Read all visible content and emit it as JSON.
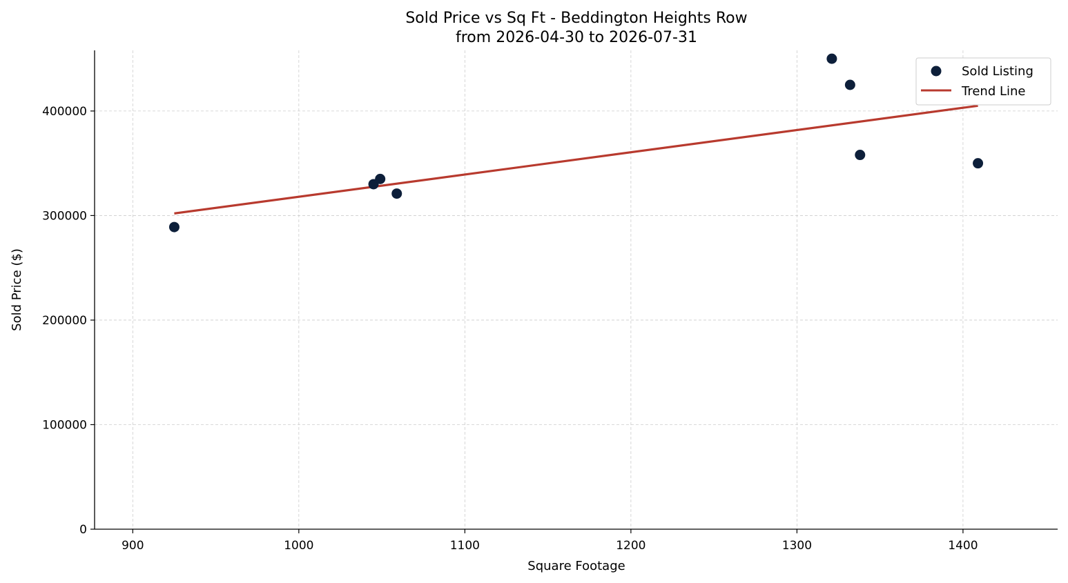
{
  "chart_data": {
    "type": "scatter",
    "title": "Sold Price vs Sq Ft - Beddington Heights Row",
    "subtitle": "from 2026-04-30 to 2026-07-31",
    "xlabel": "Square Footage",
    "ylabel": "Sold Price ($)",
    "xlim": [
      877,
      1457
    ],
    "ylim": [
      0,
      458000
    ],
    "xticks": [
      900,
      1000,
      1100,
      1200,
      1300,
      1400
    ],
    "yticks": [
      0,
      100000,
      200000,
      300000,
      400000
    ],
    "grid": true,
    "legend_position": "top-right",
    "series": [
      {
        "name": "Sold Listing",
        "kind": "scatter",
        "color": "#0d1f3a",
        "points": [
          {
            "x": 925,
            "y": 289000
          },
          {
            "x": 1045,
            "y": 330000
          },
          {
            "x": 1049,
            "y": 335000
          },
          {
            "x": 1059,
            "y": 321000
          },
          {
            "x": 1321,
            "y": 450000
          },
          {
            "x": 1332,
            "y": 425000
          },
          {
            "x": 1338,
            "y": 358000
          },
          {
            "x": 1409,
            "y": 350000
          }
        ]
      },
      {
        "name": "Trend Line",
        "kind": "line",
        "color": "#b83a2e",
        "points": [
          {
            "x": 925,
            "y": 302000
          },
          {
            "x": 1409,
            "y": 405000
          }
        ]
      }
    ]
  }
}
